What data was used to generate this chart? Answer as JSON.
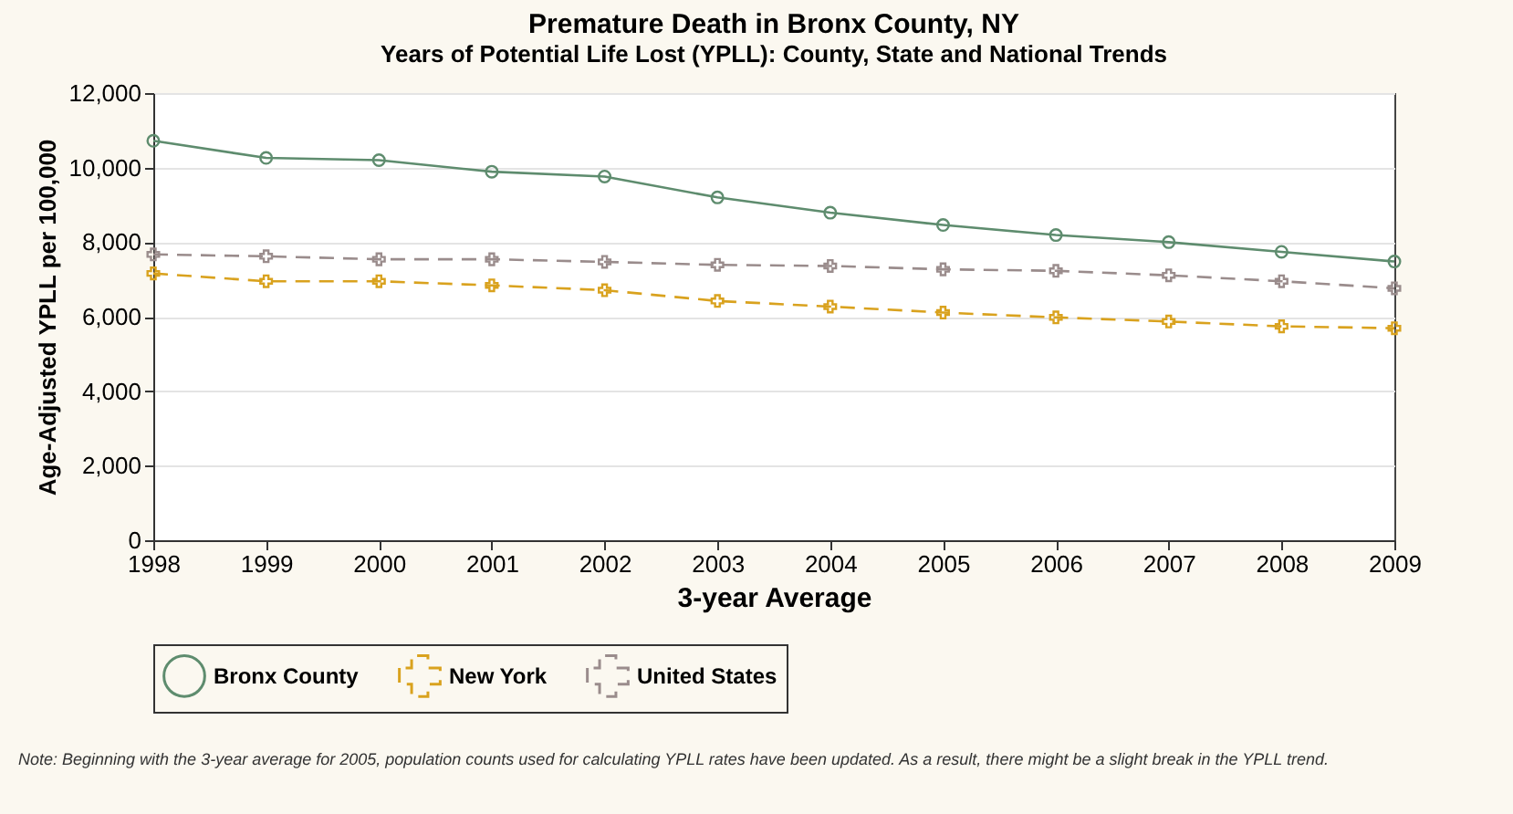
{
  "chart_data": {
    "type": "line",
    "title": "Premature Death in Bronx County, NY",
    "subtitle": "Years of Potential Life Lost (YPLL): County, State and National Trends",
    "xlabel": "3-year Average",
    "ylabel": "Age-Adjusted YPLL per 100,000",
    "x": [
      1998,
      1999,
      2000,
      2001,
      2002,
      2003,
      2004,
      2005,
      2006,
      2007,
      2008,
      2009
    ],
    "series": [
      {
        "name": "Bronx County",
        "color": "#5e8c6e",
        "marker": "circle",
        "line_style": "solid",
        "values": [
          10720,
          10260,
          10200,
          9890,
          9760,
          9200,
          8790,
          8460,
          8190,
          8000,
          7740,
          7480
        ]
      },
      {
        "name": "New York",
        "color": "#d9a21e",
        "marker": "cross",
        "line_style": "dashed",
        "values": [
          7160,
          6950,
          6950,
          6840,
          6710,
          6420,
          6270,
          6110,
          5980,
          5870,
          5740,
          5690
        ]
      },
      {
        "name": "United States",
        "color": "#9a8c8c",
        "marker": "cross",
        "line_style": "dashed",
        "values": [
          7670,
          7620,
          7540,
          7540,
          7470,
          7390,
          7360,
          7270,
          7230,
          7110,
          6950,
          6760
        ]
      }
    ],
    "xlim": [
      1998,
      2009
    ],
    "xticks": [
      1998,
      1999,
      2000,
      2001,
      2002,
      2003,
      2004,
      2005,
      2006,
      2007,
      2008,
      2009
    ],
    "ylim": [
      0,
      12000
    ],
    "yticks": [
      0,
      {
        "value": 2000,
        "label": "2,000"
      },
      {
        "value": 4000,
        "label": "4,000"
      },
      {
        "value": 6000,
        "label": "6,000"
      },
      {
        "value": 8000,
        "label": "8,000"
      },
      {
        "value": 10000,
        "label": "10,000"
      },
      {
        "value": 12000,
        "label": "12,000"
      }
    ],
    "grid": "y",
    "legend": "bottom",
    "annotations": [
      "Note: Beginning with the 3-year average for 2005, population counts used for calculating YPLL rates have been updated. As a result, there might be a slight break in the YPLL trend."
    ]
  }
}
